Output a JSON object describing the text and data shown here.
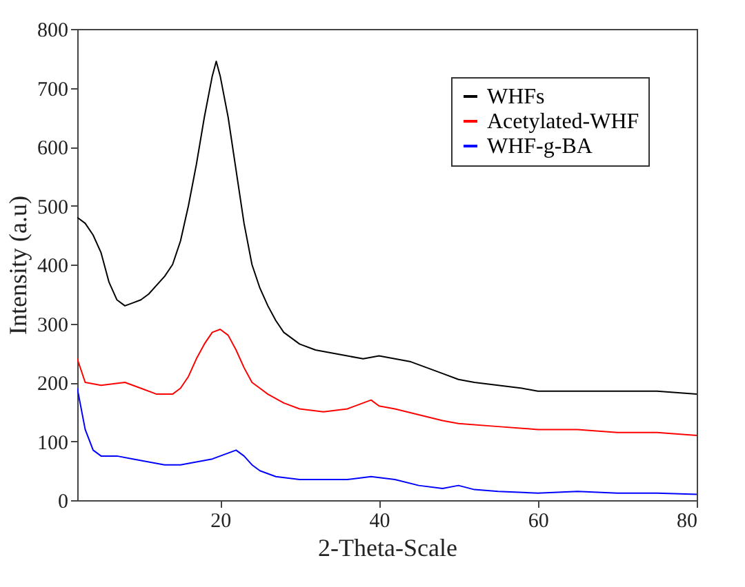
{
  "chart_data": {
    "type": "line",
    "xlabel": "2-Theta-Scale",
    "ylabel": "Intensity (a.u)",
    "xlim": [
      2,
      80
    ],
    "xticks": [
      20,
      40,
      60,
      80
    ],
    "ylim": [
      0,
      800
    ],
    "yticks": [
      0,
      100,
      200,
      300,
      400,
      500,
      600,
      700,
      800
    ],
    "grid": false,
    "legend": "top right",
    "marker": "none",
    "line_style": "solid",
    "series": [
      {
        "name": "WHFs",
        "color": "#000000",
        "x": [
          2,
          3,
          4,
          5,
          6,
          7,
          8,
          9,
          10,
          11,
          12,
          13,
          14,
          15,
          16,
          17,
          18,
          19,
          19.5,
          20,
          21,
          22,
          23,
          24,
          25,
          26,
          27,
          28,
          30,
          32,
          34,
          36,
          38,
          40,
          42,
          44,
          46,
          48,
          50,
          52,
          55,
          58,
          60,
          65,
          70,
          75,
          80
        ],
        "values": [
          480,
          470,
          450,
          420,
          370,
          340,
          330,
          335,
          340,
          350,
          365,
          380,
          400,
          440,
          500,
          570,
          650,
          720,
          745,
          720,
          650,
          560,
          470,
          400,
          360,
          330,
          305,
          285,
          265,
          255,
          250,
          245,
          240,
          245,
          240,
          235,
          225,
          215,
          205,
          200,
          195,
          190,
          185,
          185,
          185,
          185,
          180
        ]
      },
      {
        "name": "Acetylated-WHF",
        "color": "#ff0000",
        "x": [
          2,
          3,
          5,
          8,
          10,
          12,
          14,
          15,
          16,
          17,
          18,
          19,
          20,
          21,
          22,
          23,
          24,
          25,
          26,
          28,
          30,
          33,
          36,
          38,
          39,
          40,
          42,
          45,
          48,
          50,
          55,
          60,
          65,
          70,
          75,
          80
        ],
        "values": [
          240,
          200,
          195,
          200,
          190,
          180,
          180,
          190,
          210,
          240,
          265,
          285,
          290,
          280,
          255,
          225,
          200,
          190,
          180,
          165,
          155,
          150,
          155,
          165,
          170,
          160,
          155,
          145,
          135,
          130,
          125,
          120,
          120,
          115,
          115,
          110
        ]
      },
      {
        "name": "WHF-g-BA",
        "color": "#0000ff",
        "x": [
          2,
          3,
          4,
          5,
          7,
          9,
          11,
          13,
          15,
          17,
          19,
          21,
          22,
          23,
          24,
          25,
          27,
          30,
          33,
          36,
          39,
          42,
          45,
          48,
          50,
          52,
          55,
          60,
          65,
          70,
          75,
          80
        ],
        "values": [
          190,
          120,
          85,
          75,
          75,
          70,
          65,
          60,
          60,
          65,
          70,
          80,
          85,
          75,
          60,
          50,
          40,
          35,
          35,
          35,
          40,
          35,
          25,
          20,
          25,
          18,
          15,
          12,
          15,
          12,
          12,
          10
        ]
      }
    ]
  }
}
